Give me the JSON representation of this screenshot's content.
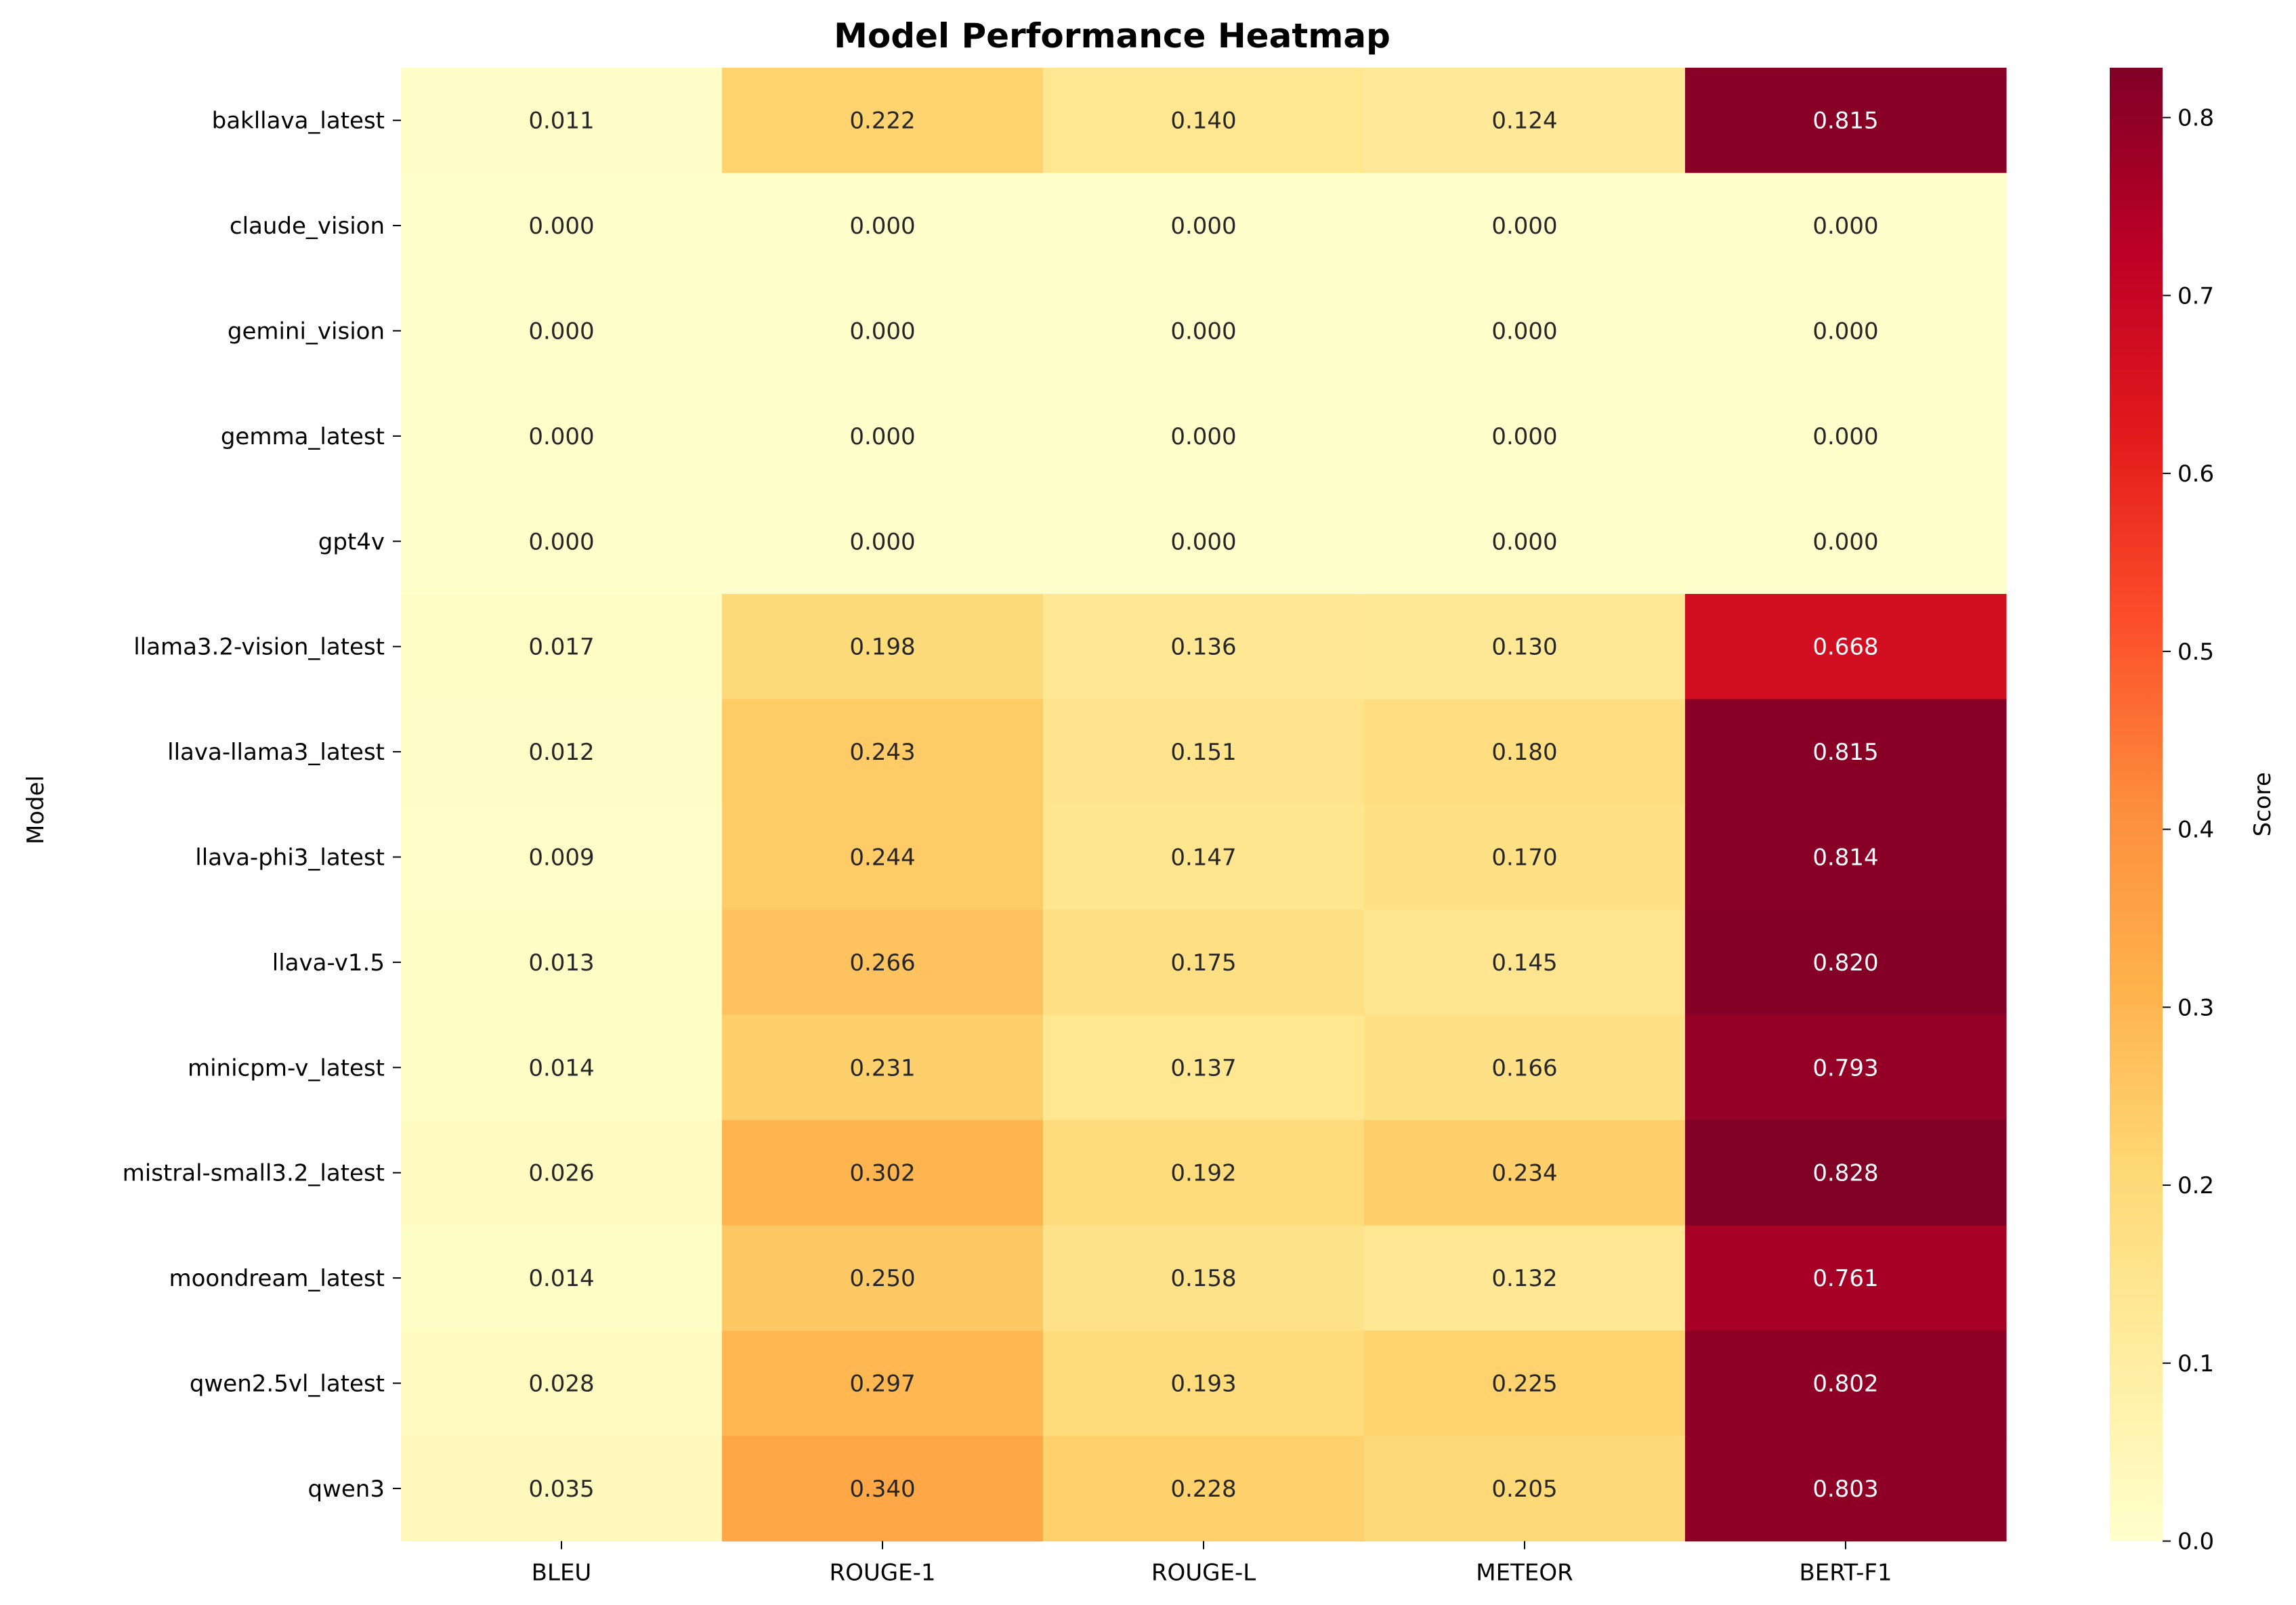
{
  "chart_data": {
    "type": "heatmap",
    "title": "Model Performance Heatmap",
    "ylabel": "Model",
    "xlabel": "",
    "x_categories": [
      "BLEU",
      "ROUGE-1",
      "ROUGE-L",
      "METEOR",
      "BERT-F1"
    ],
    "y_categories": [
      "bakllava_latest",
      "claude_vision",
      "gemini_vision",
      "gemma_latest",
      "gpt4v",
      "llama3.2-vision_latest",
      "llava-llama3_latest",
      "llava-phi3_latest",
      "llava-v1.5",
      "minicpm-v_latest",
      "mistral-small3.2_latest",
      "moondream_latest",
      "qwen2.5vl_latest",
      "qwen3"
    ],
    "values": [
      [
        0.011,
        0.222,
        0.14,
        0.124,
        0.815
      ],
      [
        0.0,
        0.0,
        0.0,
        0.0,
        0.0
      ],
      [
        0.0,
        0.0,
        0.0,
        0.0,
        0.0
      ],
      [
        0.0,
        0.0,
        0.0,
        0.0,
        0.0
      ],
      [
        0.0,
        0.0,
        0.0,
        0.0,
        0.0
      ],
      [
        0.017,
        0.198,
        0.136,
        0.13,
        0.668
      ],
      [
        0.012,
        0.243,
        0.151,
        0.18,
        0.815
      ],
      [
        0.009,
        0.244,
        0.147,
        0.17,
        0.814
      ],
      [
        0.013,
        0.266,
        0.175,
        0.145,
        0.82
      ],
      [
        0.014,
        0.231,
        0.137,
        0.166,
        0.793
      ],
      [
        0.026,
        0.302,
        0.192,
        0.234,
        0.828
      ],
      [
        0.014,
        0.25,
        0.158,
        0.132,
        0.761
      ],
      [
        0.028,
        0.297,
        0.193,
        0.225,
        0.802
      ],
      [
        0.035,
        0.34,
        0.228,
        0.205,
        0.803
      ]
    ],
    "value_format": "3 decimals",
    "colormap": "YlOrRd",
    "vmin": 0.0,
    "vmax": 0.828,
    "colorbar": {
      "label": "Score",
      "ticks": [
        0.0,
        0.1,
        0.2,
        0.3,
        0.4,
        0.5,
        0.6,
        0.7,
        0.8
      ],
      "tick_labels": [
        "0.0",
        "0.1",
        "0.2",
        "0.3",
        "0.4",
        "0.5",
        "0.6",
        "0.7",
        "0.8"
      ]
    },
    "colors": {
      "stops": [
        "#ffffcc",
        "#ffeda0",
        "#fed976",
        "#feb24c",
        "#fd8d3c",
        "#fc4e2a",
        "#e31a1c",
        "#bd0026",
        "#800026"
      ],
      "text_dark": "#262626",
      "text_light": "#ffffff"
    }
  }
}
